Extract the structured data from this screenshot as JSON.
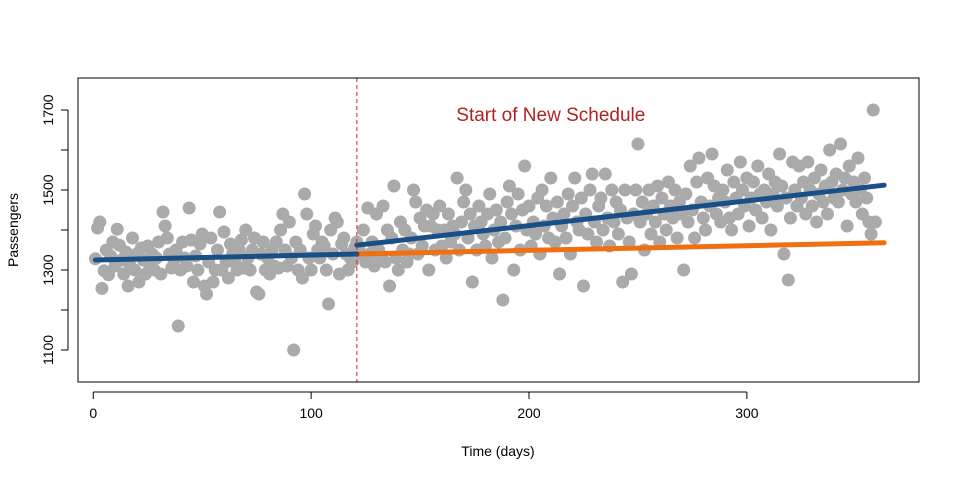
{
  "chart_data": {
    "type": "scatter",
    "title": "",
    "xlabel": "Time (days)",
    "ylabel": "Passengers",
    "xlim": [
      -7,
      379
    ],
    "ylim": [
      1020,
      1780
    ],
    "x_ticks": [
      0,
      100,
      200,
      300
    ],
    "y_ticks": [
      1100,
      1300,
      1500,
      1700
    ],
    "grid": false,
    "legend": "none",
    "colors": {
      "points": "#aaaaaa",
      "fit": "#1a4e86",
      "counterfactual": "#ee7011",
      "intervention": "#cc2222",
      "annotation": "#b22222"
    },
    "intervention": {
      "x": 121,
      "label": "Start of New Schedule",
      "label_x": 210,
      "label_y": 1690
    },
    "points": [
      [
        1,
        1328
      ],
      [
        2,
        1405
      ],
      [
        3,
        1420
      ],
      [
        4,
        1254
      ],
      [
        5,
        1298
      ],
      [
        6,
        1350
      ],
      [
        7,
        1288
      ],
      [
        8,
        1335
      ],
      [
        9,
        1370
      ],
      [
        10,
        1310
      ],
      [
        11,
        1402
      ],
      [
        12,
        1362
      ],
      [
        13,
        1325
      ],
      [
        14,
        1290
      ],
      [
        15,
        1345
      ],
      [
        16,
        1260
      ],
      [
        17,
        1310
      ],
      [
        18,
        1380
      ],
      [
        19,
        1300
      ],
      [
        20,
        1340
      ],
      [
        21,
        1270
      ],
      [
        22,
        1355
      ],
      [
        23,
        1325
      ],
      [
        24,
        1290
      ],
      [
        25,
        1360
      ],
      [
        26,
        1310
      ],
      [
        27,
        1340
      ],
      [
        28,
        1300
      ],
      [
        29,
        1330
      ],
      [
        30,
        1370
      ],
      [
        31,
        1290
      ],
      [
        32,
        1445
      ],
      [
        33,
        1410
      ],
      [
        34,
        1380
      ],
      [
        35,
        1340
      ],
      [
        36,
        1305
      ],
      [
        37,
        1325
      ],
      [
        38,
        1350
      ],
      [
        39,
        1160
      ],
      [
        40,
        1300
      ],
      [
        41,
        1370
      ],
      [
        42,
        1330
      ],
      [
        43,
        1310
      ],
      [
        44,
        1455
      ],
      [
        45,
        1375
      ],
      [
        46,
        1270
      ],
      [
        47,
        1335
      ],
      [
        48,
        1300
      ],
      [
        49,
        1365
      ],
      [
        50,
        1390
      ],
      [
        51,
        1260
      ],
      [
        52,
        1240
      ],
      [
        53,
        1320
      ],
      [
        54,
        1380
      ],
      [
        55,
        1270
      ],
      [
        56,
        1300
      ],
      [
        57,
        1350
      ],
      [
        58,
        1445
      ],
      [
        59,
        1300
      ],
      [
        60,
        1395
      ],
      [
        61,
        1320
      ],
      [
        62,
        1280
      ],
      [
        63,
        1365
      ],
      [
        64,
        1340
      ],
      [
        65,
        1320
      ],
      [
        66,
        1300
      ],
      [
        67,
        1350
      ],
      [
        68,
        1375
      ],
      [
        69,
        1305
      ],
      [
        70,
        1400
      ],
      [
        71,
        1330
      ],
      [
        72,
        1300
      ],
      [
        73,
        1350
      ],
      [
        74,
        1380
      ],
      [
        75,
        1245
      ],
      [
        76,
        1240
      ],
      [
        77,
        1340
      ],
      [
        78,
        1370
      ],
      [
        79,
        1300
      ],
      [
        80,
        1330
      ],
      [
        81,
        1290
      ],
      [
        82,
        1350
      ],
      [
        83,
        1310
      ],
      [
        84,
        1370
      ],
      [
        85,
        1305
      ],
      [
        86,
        1400
      ],
      [
        87,
        1440
      ],
      [
        88,
        1350
      ],
      [
        89,
        1310
      ],
      [
        90,
        1420
      ],
      [
        91,
        1330
      ],
      [
        92,
        1100
      ],
      [
        93,
        1370
      ],
      [
        94,
        1300
      ],
      [
        95,
        1350
      ],
      [
        96,
        1280
      ],
      [
        97,
        1490
      ],
      [
        98,
        1440
      ],
      [
        99,
        1330
      ],
      [
        100,
        1300
      ],
      [
        101,
        1390
      ],
      [
        102,
        1410
      ],
      [
        103,
        1350
      ],
      [
        104,
        1330
      ],
      [
        105,
        1370
      ],
      [
        106,
        1360
      ],
      [
        107,
        1300
      ],
      [
        108,
        1215
      ],
      [
        109,
        1400
      ],
      [
        110,
        1340
      ],
      [
        111,
        1430
      ],
      [
        112,
        1420
      ],
      [
        113,
        1290
      ],
      [
        114,
        1365
      ],
      [
        115,
        1380
      ],
      [
        116,
        1340
      ],
      [
        117,
        1300
      ],
      [
        118,
        1330
      ],
      [
        119,
        1320
      ],
      [
        120,
        1355
      ],
      [
        121,
        1370
      ],
      [
        122,
        1350
      ],
      [
        123,
        1340
      ],
      [
        124,
        1400
      ],
      [
        125,
        1320
      ],
      [
        126,
        1455
      ],
      [
        127,
        1340
      ],
      [
        128,
        1370
      ],
      [
        129,
        1310
      ],
      [
        130,
        1440
      ],
      [
        131,
        1350
      ],
      [
        132,
        1330
      ],
      [
        133,
        1460
      ],
      [
        134,
        1320
      ],
      [
        135,
        1400
      ],
      [
        136,
        1260
      ],
      [
        137,
        1380
      ],
      [
        138,
        1510
      ],
      [
        139,
        1330
      ],
      [
        140,
        1300
      ],
      [
        141,
        1420
      ],
      [
        142,
        1350
      ],
      [
        143,
        1400
      ],
      [
        144,
        1320
      ],
      [
        145,
        1340
      ],
      [
        146,
        1380
      ],
      [
        147,
        1500
      ],
      [
        148,
        1470
      ],
      [
        149,
        1340
      ],
      [
        150,
        1430
      ],
      [
        151,
        1360
      ],
      [
        152,
        1410
      ],
      [
        153,
        1450
      ],
      [
        154,
        1300
      ],
      [
        155,
        1410
      ],
      [
        156,
        1440
      ],
      [
        157,
        1350
      ],
      [
        158,
        1400
      ],
      [
        159,
        1460
      ],
      [
        160,
        1360
      ],
      [
        161,
        1400
      ],
      [
        162,
        1330
      ],
      [
        163,
        1440
      ],
      [
        164,
        1370
      ],
      [
        165,
        1410
      ],
      [
        166,
        1390
      ],
      [
        167,
        1530
      ],
      [
        168,
        1350
      ],
      [
        169,
        1420
      ],
      [
        170,
        1470
      ],
      [
        171,
        1500
      ],
      [
        172,
        1380
      ],
      [
        173,
        1440
      ],
      [
        174,
        1270
      ],
      [
        175,
        1410
      ],
      [
        176,
        1350
      ],
      [
        177,
        1460
      ],
      [
        178,
        1420
      ],
      [
        179,
        1390
      ],
      [
        180,
        1360
      ],
      [
        181,
        1440
      ],
      [
        182,
        1490
      ],
      [
        183,
        1330
      ],
      [
        184,
        1400
      ],
      [
        185,
        1450
      ],
      [
        186,
        1370
      ],
      [
        187,
        1420
      ],
      [
        188,
        1225
      ],
      [
        189,
        1380
      ],
      [
        190,
        1470
      ],
      [
        191,
        1510
      ],
      [
        192,
        1440
      ],
      [
        193,
        1300
      ],
      [
        194,
        1410
      ],
      [
        195,
        1490
      ],
      [
        196,
        1350
      ],
      [
        197,
        1450
      ],
      [
        198,
        1560
      ],
      [
        199,
        1400
      ],
      [
        200,
        1460
      ],
      [
        201,
        1360
      ],
      [
        202,
        1420
      ],
      [
        203,
        1390
      ],
      [
        204,
        1480
      ],
      [
        205,
        1340
      ],
      [
        206,
        1500
      ],
      [
        207,
        1410
      ],
      [
        208,
        1460
      ],
      [
        209,
        1380
      ],
      [
        210,
        1530
      ],
      [
        211,
        1430
      ],
      [
        212,
        1370
      ],
      [
        213,
        1470
      ],
      [
        214,
        1290
      ],
      [
        215,
        1410
      ],
      [
        216,
        1440
      ],
      [
        217,
        1380
      ],
      [
        218,
        1490
      ],
      [
        219,
        1340
      ],
      [
        220,
        1460
      ],
      [
        221,
        1530
      ],
      [
        222,
        1420
      ],
      [
        223,
        1400
      ],
      [
        224,
        1480
      ],
      [
        225,
        1260
      ],
      [
        226,
        1440
      ],
      [
        227,
        1390
      ],
      [
        228,
        1500
      ],
      [
        229,
        1540
      ],
      [
        230,
        1420
      ],
      [
        231,
        1370
      ],
      [
        232,
        1460
      ],
      [
        233,
        1480
      ],
      [
        234,
        1400
      ],
      [
        235,
        1540
      ],
      [
        236,
        1430
      ],
      [
        237,
        1360
      ],
      [
        238,
        1500
      ],
      [
        239,
        1420
      ],
      [
        240,
        1470
      ],
      [
        241,
        1390
      ],
      [
        242,
        1450
      ],
      [
        243,
        1270
      ],
      [
        244,
        1500
      ],
      [
        245,
        1430
      ],
      [
        246,
        1370
      ],
      [
        247,
        1290
      ],
      [
        248,
        1440
      ],
      [
        249,
        1500
      ],
      [
        250,
        1615
      ],
      [
        251,
        1420
      ],
      [
        252,
        1470
      ],
      [
        253,
        1350
      ],
      [
        254,
        1440
      ],
      [
        255,
        1500
      ],
      [
        256,
        1390
      ],
      [
        257,
        1460
      ],
      [
        258,
        1420
      ],
      [
        259,
        1510
      ],
      [
        260,
        1370
      ],
      [
        261,
        1480
      ],
      [
        262,
        1440
      ],
      [
        263,
        1400
      ],
      [
        264,
        1520
      ],
      [
        265,
        1460
      ],
      [
        266,
        1430
      ],
      [
        267,
        1500
      ],
      [
        268,
        1380
      ],
      [
        269,
        1470
      ],
      [
        270,
        1440
      ],
      [
        271,
        1300
      ],
      [
        272,
        1490
      ],
      [
        273,
        1420
      ],
      [
        274,
        1560
      ],
      [
        275,
        1450
      ],
      [
        276,
        1380
      ],
      [
        277,
        1520
      ],
      [
        278,
        1580
      ],
      [
        279,
        1470
      ],
      [
        280,
        1430
      ],
      [
        281,
        1400
      ],
      [
        282,
        1530
      ],
      [
        283,
        1460
      ],
      [
        284,
        1590
      ],
      [
        285,
        1510
      ],
      [
        286,
        1440
      ],
      [
        287,
        1480
      ],
      [
        288,
        1420
      ],
      [
        289,
        1500
      ],
      [
        290,
        1470
      ],
      [
        291,
        1550
      ],
      [
        292,
        1430
      ],
      [
        293,
        1400
      ],
      [
        294,
        1520
      ],
      [
        295,
        1480
      ],
      [
        296,
        1440
      ],
      [
        297,
        1570
      ],
      [
        298,
        1500
      ],
      [
        299,
        1460
      ],
      [
        300,
        1530
      ],
      [
        301,
        1410
      ],
      [
        302,
        1480
      ],
      [
        303,
        1520
      ],
      [
        304,
        1450
      ],
      [
        305,
        1560
      ],
      [
        306,
        1490
      ],
      [
        307,
        1430
      ],
      [
        308,
        1500
      ],
      [
        309,
        1470
      ],
      [
        310,
        1540
      ],
      [
        311,
        1400
      ],
      [
        312,
        1490
      ],
      [
        313,
        1520
      ],
      [
        314,
        1460
      ],
      [
        315,
        1590
      ],
      [
        316,
        1510
      ],
      [
        317,
        1340
      ],
      [
        318,
        1480
      ],
      [
        319,
        1275
      ],
      [
        320,
        1430
      ],
      [
        321,
        1570
      ],
      [
        322,
        1500
      ],
      [
        323,
        1460
      ],
      [
        324,
        1560
      ],
      [
        325,
        1480
      ],
      [
        326,
        1520
      ],
      [
        327,
        1440
      ],
      [
        328,
        1570
      ],
      [
        329,
        1500
      ],
      [
        330,
        1460
      ],
      [
        331,
        1530
      ],
      [
        332,
        1420
      ],
      [
        333,
        1490
      ],
      [
        334,
        1550
      ],
      [
        335,
        1470
      ],
      [
        336,
        1510
      ],
      [
        337,
        1440
      ],
      [
        338,
        1600
      ],
      [
        339,
        1520
      ],
      [
        340,
        1480
      ],
      [
        341,
        1540
      ],
      [
        342,
        1470
      ],
      [
        343,
        1615
      ],
      [
        344,
        1500
      ],
      [
        345,
        1530
      ],
      [
        346,
        1410
      ],
      [
        347,
        1560
      ],
      [
        348,
        1490
      ],
      [
        349,
        1520
      ],
      [
        350,
        1470
      ],
      [
        351,
        1580
      ],
      [
        352,
        1500
      ],
      [
        353,
        1440
      ],
      [
        354,
        1530
      ],
      [
        355,
        1480
      ],
      [
        356,
        1420
      ],
      [
        357,
        1390
      ],
      [
        358,
        1700
      ],
      [
        359,
        1420
      ]
    ],
    "fit_pre": {
      "x": [
        1,
        121
      ],
      "y": [
        1325,
        1340
      ]
    },
    "fit_post": {
      "x": [
        121,
        363
      ],
      "y": [
        1362,
        1512
      ]
    },
    "counterfactual": {
      "x": [
        121,
        363
      ],
      "y": [
        1340,
        1368
      ]
    }
  }
}
